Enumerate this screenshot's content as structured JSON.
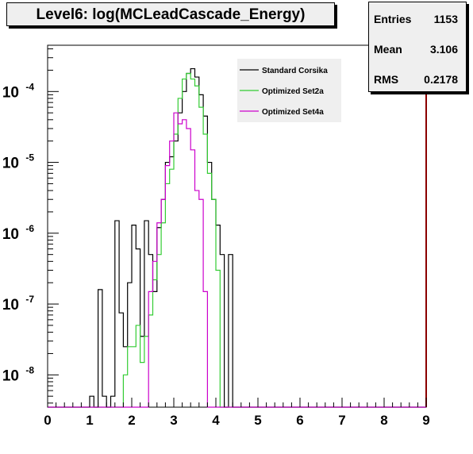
{
  "title": "Level6:  log(MCLeadCascade_Energy)",
  "stats": [
    {
      "key": "Entries",
      "value": "1153"
    },
    {
      "key": "Mean",
      "value": "3.106"
    },
    {
      "key": "RMS",
      "value": "0.2178"
    }
  ],
  "chart_data": {
    "type": "line",
    "title": "Level6:  log(MCLeadCascade_Energy)",
    "xlabel": "",
    "ylabel": "",
    "x_range": [
      0,
      9
    ],
    "y_range": [
      3.5e-09,
      0.00045
    ],
    "y_scale": "log",
    "x_ticks": [
      "0",
      "1",
      "2",
      "3",
      "4",
      "5",
      "6",
      "7",
      "8",
      "9"
    ],
    "y_ticks": [
      {
        "value": 1e-08,
        "base": "10",
        "exp": "-8"
      },
      {
        "value": 1e-07,
        "base": "10",
        "exp": "-7"
      },
      {
        "value": 1e-06,
        "base": "10",
        "exp": "-6"
      },
      {
        "value": 1e-05,
        "base": "10",
        "exp": "-5"
      },
      {
        "value": 0.0001,
        "base": "10",
        "exp": "-4"
      }
    ],
    "bin_width": 0.1,
    "bin_start": 1.0,
    "grid": false,
    "legend_position": "top-right",
    "series": [
      {
        "name": "Standard Corsika",
        "color": "#000000",
        "values": [
          5e-09,
          0,
          1.6e-07,
          5e-09,
          0,
          5e-09,
          1.5e-06,
          7.5e-08,
          2.5e-08,
          2e-07,
          1.3e-06,
          6e-07,
          3.5e-08,
          1.5e-06,
          5e-07,
          1.5e-07,
          1.2e-06,
          3e-06,
          1e-05,
          1.2e-05,
          2e-05,
          5e-05,
          0.0001,
          0.00018,
          0.00021,
          0.00016,
          9e-05,
          4.5e-05,
          1e-05,
          3e-06,
          1.3e-06,
          5e-07,
          0,
          5e-07
        ]
      },
      {
        "name": "Optimized Set2a",
        "color": "#33cc33",
        "values": [
          0,
          0,
          0,
          0,
          0,
          0,
          0,
          0,
          1e-08,
          2.5e-08,
          2.5e-08,
          5e-08,
          1.5e-08,
          3.5e-08,
          7e-08,
          2.2e-07,
          5e-07,
          1.4e-06,
          5e-06,
          8e-06,
          2.5e-05,
          8e-05,
          0.00015,
          0.00018,
          0.00015,
          0.00012,
          6e-05,
          2.5e-05,
          7e-06,
          3e-06,
          3e-07,
          0,
          0,
          0
        ]
      },
      {
        "name": "Optimized Set4a",
        "color": "#cc00cc",
        "values": [
          0,
          0,
          0,
          0,
          0,
          0,
          0,
          0,
          0,
          0,
          0,
          0,
          0,
          0,
          1.5e-07,
          4e-07,
          1.4e-06,
          3e-06,
          9e-06,
          2e-05,
          5e-05,
          3.5e-05,
          4e-05,
          3e-05,
          1.5e-05,
          4e-06,
          3e-06,
          1.5e-07,
          0,
          0
        ]
      }
    ]
  }
}
